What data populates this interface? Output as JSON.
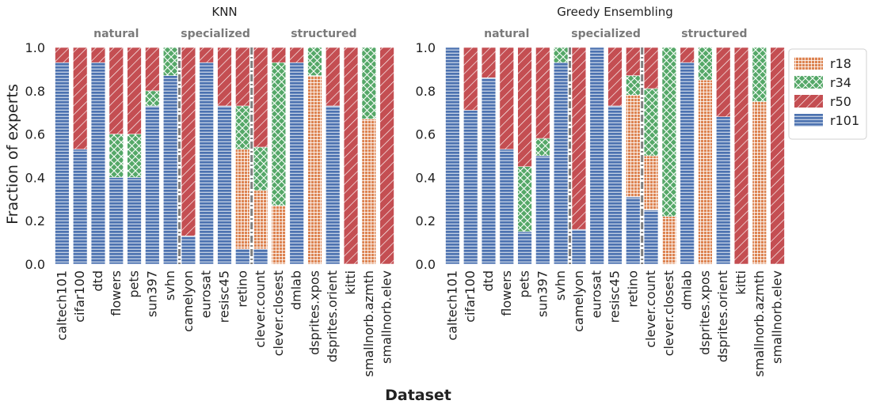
{
  "figure": {
    "xlabel": "Dataset",
    "ylabel": "Fraction of experts",
    "yticks": [
      "0.0",
      "0.2",
      "0.4",
      "0.6",
      "0.8",
      "1.0"
    ]
  },
  "legend": {
    "entries": [
      {
        "label": "r18",
        "color": "#dd8452",
        "pattern": "grid"
      },
      {
        "label": "r34",
        "color": "#55a868",
        "pattern": "crosshatch"
      },
      {
        "label": "r50",
        "color": "#c44e52",
        "pattern": "diagonal"
      },
      {
        "label": "r101",
        "color": "#4c72b0",
        "pattern": "horizontal"
      }
    ]
  },
  "chart_data": [
    {
      "type": "bar",
      "stacked": true,
      "title": "KNN",
      "xlabel": "Dataset",
      "ylabel": "Fraction of experts",
      "ylim": [
        0,
        1
      ],
      "groups": [
        {
          "label": "natural",
          "start": 0,
          "end": 6
        },
        {
          "label": "specialized",
          "start": 7,
          "end": 10
        },
        {
          "label": "structured",
          "start": 11,
          "end": 18
        }
      ],
      "categories": [
        "caltech101",
        "cifar100",
        "dtd",
        "flowers",
        "pets",
        "sun397",
        "svhn",
        "camelyon",
        "eurosat",
        "resisc45",
        "retino",
        "clever.count",
        "clever.closest",
        "dmlab",
        "dsprites.xpos",
        "dsprites.orient",
        "kitti",
        "smallnorb.azmth",
        "smallnorb.elev"
      ],
      "series": [
        {
          "name": "r101",
          "values": [
            0.93,
            0.53,
            0.93,
            0.4,
            0.4,
            0.73,
            0.87,
            0.13,
            0.93,
            0.73,
            0.07,
            0.07,
            0.0,
            0.93,
            0.0,
            0.73,
            0.0,
            0.0,
            0.0
          ]
        },
        {
          "name": "r18",
          "values": [
            0.0,
            0.0,
            0.0,
            0.0,
            0.0,
            0.0,
            0.0,
            0.0,
            0.0,
            0.0,
            0.46,
            0.27,
            0.27,
            0.0,
            0.87,
            0.0,
            0.0,
            0.67,
            0.0
          ]
        },
        {
          "name": "r34",
          "values": [
            0.0,
            0.0,
            0.0,
            0.2,
            0.2,
            0.07,
            0.13,
            0.0,
            0.0,
            0.0,
            0.2,
            0.2,
            0.66,
            0.0,
            0.13,
            0.0,
            0.0,
            0.33,
            0.0
          ]
        },
        {
          "name": "r50",
          "values": [
            0.07,
            0.47,
            0.07,
            0.4,
            0.4,
            0.2,
            0.0,
            0.87,
            0.07,
            0.27,
            0.27,
            0.46,
            0.07,
            0.07,
            0.0,
            0.27,
            1.0,
            0.0,
            1.0
          ]
        }
      ]
    },
    {
      "type": "bar",
      "stacked": true,
      "title": "Greedy Ensembling",
      "xlabel": "Dataset",
      "ylabel": "Fraction of experts",
      "ylim": [
        0,
        1
      ],
      "groups": [
        {
          "label": "natural",
          "start": 0,
          "end": 6
        },
        {
          "label": "specialized",
          "start": 7,
          "end": 10
        },
        {
          "label": "structured",
          "start": 11,
          "end": 18
        }
      ],
      "categories": [
        "caltech101",
        "cifar100",
        "dtd",
        "flowers",
        "pets",
        "sun397",
        "svhn",
        "camelyon",
        "eurosat",
        "resisc45",
        "retino",
        "clever.count",
        "clever.closest",
        "dmlab",
        "dsprites.xpos",
        "dsprites.orient",
        "kitti",
        "smallnorb.azmth",
        "smallnorb.elev"
      ],
      "series": [
        {
          "name": "r101",
          "values": [
            1.0,
            0.71,
            0.86,
            0.53,
            0.15,
            0.5,
            0.93,
            0.16,
            1.0,
            0.73,
            0.31,
            0.25,
            0.0,
            0.93,
            0.0,
            0.68,
            0.0,
            0.0,
            0.0
          ]
        },
        {
          "name": "r18",
          "values": [
            0.0,
            0.0,
            0.0,
            0.0,
            0.0,
            0.0,
            0.0,
            0.0,
            0.0,
            0.0,
            0.47,
            0.25,
            0.22,
            0.0,
            0.85,
            0.0,
            0.0,
            0.75,
            0.0
          ]
        },
        {
          "name": "r34",
          "values": [
            0.0,
            0.0,
            0.0,
            0.0,
            0.3,
            0.08,
            0.07,
            0.0,
            0.0,
            0.0,
            0.09,
            0.31,
            0.78,
            0.0,
            0.15,
            0.0,
            0.0,
            0.25,
            0.0
          ]
        },
        {
          "name": "r50",
          "values": [
            0.0,
            0.29,
            0.14,
            0.47,
            0.55,
            0.42,
            0.0,
            0.84,
            0.0,
            0.27,
            0.13,
            0.19,
            0.0,
            0.07,
            0.0,
            0.32,
            1.0,
            0.0,
            1.0
          ]
        }
      ]
    }
  ]
}
